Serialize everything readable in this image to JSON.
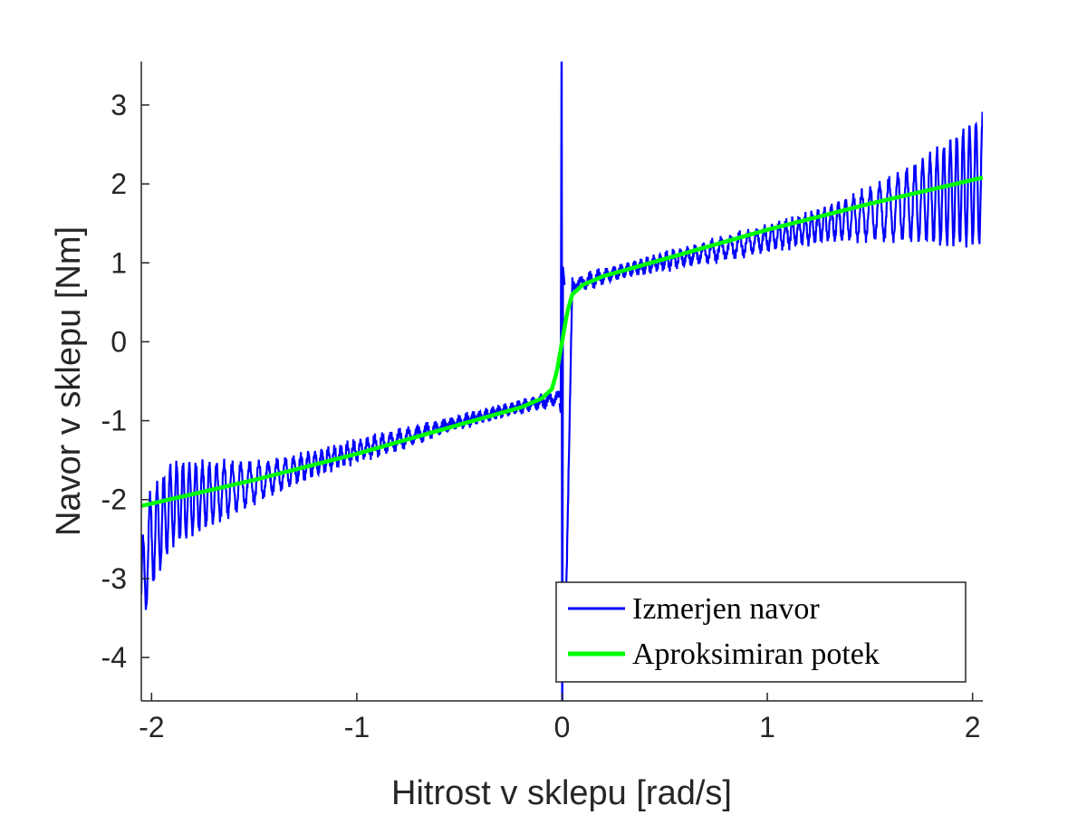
{
  "chart_data": {
    "type": "line",
    "title": "",
    "xlabel": "Hitrost v sklepu [rad/s]",
    "ylabel": "Navor v sklepu [Nm]",
    "xlim": [
      -2.05,
      2.05
    ],
    "ylim": [
      -4.55,
      3.55
    ],
    "xticks": [
      -2,
      -1,
      0,
      1,
      2
    ],
    "xtick_labels": [
      "-2",
      "-1",
      "0",
      "1",
      "2"
    ],
    "yticks": [
      -4,
      -3,
      -2,
      -1,
      0,
      1,
      2,
      3
    ],
    "ytick_labels": [
      "-4",
      "-3",
      "-2",
      "-1",
      "0",
      "1",
      "2",
      "3"
    ],
    "grid": false,
    "legend_position": "bottom-right",
    "series": [
      {
        "name": "Izmerjen navor",
        "color": "#0000ff",
        "style": "noisy-oscillating",
        "x": [
          -2.05,
          -2.02,
          -1.9,
          -1.75,
          -1.6,
          -1.45,
          -1.3,
          -1.15,
          -1.0,
          -0.85,
          -0.7,
          -0.55,
          -0.4,
          -0.25,
          -0.1,
          -0.01,
          0.0,
          0.01,
          0.05,
          0.1,
          0.2,
          0.3,
          0.5,
          0.7,
          0.9,
          1.1,
          1.3,
          1.5,
          1.7,
          1.85,
          2.0,
          2.05
        ],
        "y": [
          -3.4,
          -2.6,
          -2.05,
          -1.95,
          -1.85,
          -1.75,
          -1.62,
          -1.5,
          -1.38,
          -1.28,
          -1.17,
          -1.05,
          -0.95,
          -0.85,
          -0.76,
          -0.7,
          3.5,
          -4.5,
          0.72,
          0.75,
          0.83,
          0.9,
          1.02,
          1.13,
          1.25,
          1.37,
          1.5,
          1.62,
          1.75,
          1.85,
          2.0,
          2.05
        ],
        "oscillation_amplitude": [
          0.75,
          0.6,
          0.5,
          0.4,
          0.3,
          0.2,
          0.15,
          0.12,
          0.1,
          0.1,
          0.08,
          0.05,
          0.05,
          0.05,
          0.05,
          0.05,
          0.0,
          0.0,
          0.05,
          0.05,
          0.06,
          0.06,
          0.08,
          0.1,
          0.12,
          0.15,
          0.2,
          0.3,
          0.45,
          0.6,
          0.75,
          0.8
        ]
      },
      {
        "name": "Aproksimiran potek",
        "color": "#00ff00",
        "x": [
          -2.05,
          -1.5,
          -1.0,
          -0.5,
          -0.2,
          -0.1,
          -0.05,
          -0.03,
          -0.02,
          -0.01,
          0.0,
          0.01,
          0.02,
          0.03,
          0.05,
          0.1,
          0.2,
          0.5,
          1.0,
          1.5,
          2.05
        ],
        "y": [
          -2.08,
          -1.75,
          -1.42,
          -1.05,
          -0.83,
          -0.72,
          -0.6,
          -0.42,
          -0.3,
          -0.15,
          0.0,
          0.15,
          0.3,
          0.42,
          0.6,
          0.72,
          0.83,
          1.05,
          1.42,
          1.75,
          2.08
        ]
      }
    ]
  }
}
